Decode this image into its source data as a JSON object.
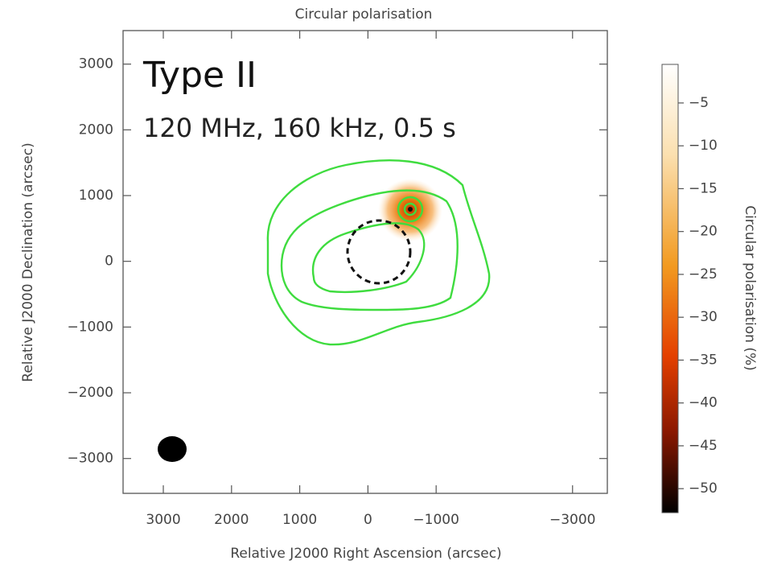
{
  "chart_data": {
    "type": "image",
    "title": "Circular polarisation",
    "x_label": "Relative J2000 Right Ascension (arcsec)",
    "y_label": "Relative J2000 Declination (arcsec)",
    "annotations": [
      "Type II",
      "120 MHz, 160 kHz, 0.5 s"
    ],
    "xlim": [
      3590,
      -3510
    ],
    "xticks": [
      3000,
      2000,
      1000,
      0,
      {
        "value": -1000,
        "label": "−1000"
      },
      {
        "value": -3000,
        "label": "−3000"
      }
    ],
    "ylim": [
      -3530,
      3510
    ],
    "yticks": [
      {
        "value": -3000,
        "label": "−3000"
      },
      {
        "value": -2000,
        "label": "−2000"
      },
      {
        "value": -1000,
        "label": "−1000"
      },
      0,
      1000,
      2000,
      3000
    ],
    "colorbar": {
      "label": "Circular polarisation (%)",
      "lim": [
        -52.8,
        -0.5
      ],
      "ticks": [
        {
          "value": -50,
          "label": "−50"
        },
        {
          "value": -45,
          "label": "−45"
        },
        {
          "value": -40,
          "label": "−40"
        },
        {
          "value": -35,
          "label": "−35"
        },
        {
          "value": -30,
          "label": "−30"
        },
        {
          "value": -25,
          "label": "−25"
        },
        {
          "value": -20,
          "label": "−20"
        },
        {
          "value": -15,
          "label": "−15"
        },
        {
          "value": -10,
          "label": "−10"
        },
        {
          "value": -5,
          "label": "−5"
        }
      ]
    }
  }
}
